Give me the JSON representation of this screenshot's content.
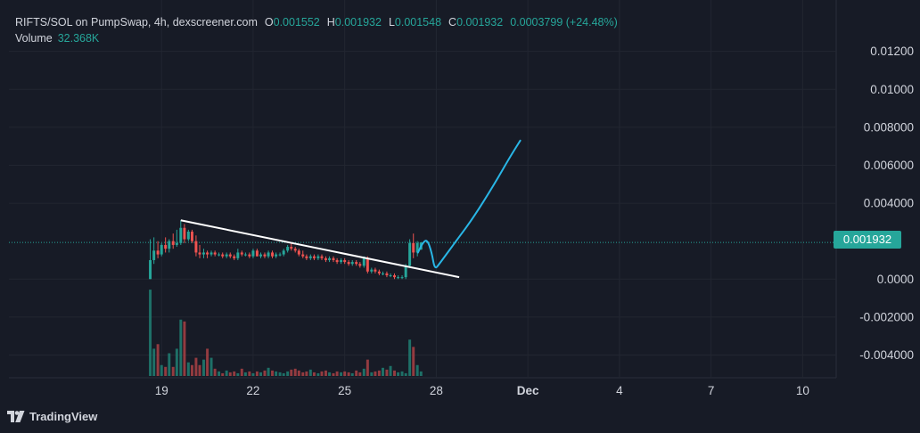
{
  "legend": {
    "symbol": "RIFTS/SOL on PumpSwap, 4h, dexscreener.com",
    "o_label": "O",
    "o": "0.001552",
    "h_label": "H",
    "h": "0.001932",
    "l_label": "L",
    "l": "0.001548",
    "c_label": "C",
    "c": "0.001932",
    "change": "0.0003799 (+24.48%)",
    "volume_label": "Volume",
    "volume": "32.368K"
  },
  "last_price": "0.001932",
  "brand": "TradingView",
  "colors": {
    "up": "#26a69a",
    "down": "#ef5350",
    "background": "#171b26",
    "grid": "#2a2e39",
    "trendline": "#ffffff",
    "projection": "#29b6e6"
  },
  "chart_data": {
    "type": "candlestick",
    "y_ticks": [
      "0.01200",
      "0.01000",
      "0.008000",
      "0.006000",
      "0.004000",
      "0.0000",
      "-0.002000",
      "-0.004000"
    ],
    "y_tick_values": [
      0.012,
      0.01,
      0.008,
      0.006,
      0.004,
      0.0,
      -0.002,
      -0.004
    ],
    "x_ticks": [
      "19",
      "22",
      "25",
      "28",
      "Dec",
      "4",
      "7",
      "10"
    ],
    "x_tick_days": [
      19,
      22,
      25,
      28,
      31,
      34,
      37,
      40
    ],
    "ylim": [
      -0.0052,
      0.0133
    ],
    "xlim": [
      14.0,
      41.1
    ],
    "grid": true,
    "candle_days": [
      18.63,
      18.75,
      18.88,
      19.0,
      19.13,
      19.25,
      19.38,
      19.5,
      19.63,
      19.75,
      19.88,
      20.0,
      20.13,
      20.25,
      20.38,
      20.5,
      20.63,
      20.75,
      20.88,
      21.0,
      21.13,
      21.25,
      21.38,
      21.5,
      21.63,
      21.75,
      21.88,
      22.0,
      22.13,
      22.25,
      22.38,
      22.5,
      22.63,
      22.75,
      22.88,
      23.0,
      23.13,
      23.25,
      23.38,
      23.5,
      23.63,
      23.75,
      23.88,
      24.0,
      24.13,
      24.25,
      24.38,
      24.5,
      24.63,
      24.75,
      24.88,
      25.0,
      25.13,
      25.25,
      25.38,
      25.5,
      25.63,
      25.75,
      25.88,
      26.0,
      26.13,
      26.25,
      26.38,
      26.5,
      26.63,
      26.75,
      26.88,
      27.0,
      27.13,
      27.25,
      27.38,
      27.5
    ],
    "ohlc": [
      [
        0.0,
        0.0021,
        0.0,
        0.001
      ],
      [
        0.001,
        0.0022,
        0.0008,
        0.0015
      ],
      [
        0.0015,
        0.002,
        0.0011,
        0.0013
      ],
      [
        0.0013,
        0.0019,
        0.0012,
        0.0018
      ],
      [
        0.0018,
        0.0022,
        0.0014,
        0.0016
      ],
      [
        0.0016,
        0.0021,
        0.0014,
        0.002
      ],
      [
        0.002,
        0.0024,
        0.0016,
        0.0018
      ],
      [
        0.0018,
        0.0026,
        0.0017,
        0.0019
      ],
      [
        0.0019,
        0.0031,
        0.0018,
        0.0027
      ],
      [
        0.0027,
        0.0029,
        0.0019,
        0.0021
      ],
      [
        0.0021,
        0.0026,
        0.002,
        0.0025
      ],
      [
        0.0025,
        0.0026,
        0.0019,
        0.002
      ],
      [
        0.002,
        0.0023,
        0.0012,
        0.0014
      ],
      [
        0.0014,
        0.0018,
        0.0011,
        0.0013
      ],
      [
        0.0013,
        0.0016,
        0.0011,
        0.0014
      ],
      [
        0.0014,
        0.0015,
        0.0011,
        0.0013
      ],
      [
        0.0013,
        0.0015,
        0.0012,
        0.0014
      ],
      [
        0.0014,
        0.0015,
        0.0012,
        0.0013
      ],
      [
        0.0013,
        0.0014,
        0.0012,
        0.0013
      ],
      [
        0.0013,
        0.0014,
        0.0011,
        0.0012
      ],
      [
        0.0012,
        0.0014,
        0.0011,
        0.0013
      ],
      [
        0.0013,
        0.0014,
        0.0011,
        0.0012
      ],
      [
        0.0012,
        0.0013,
        0.001,
        0.0011
      ],
      [
        0.0011,
        0.0016,
        0.001,
        0.0014
      ],
      [
        0.0014,
        0.0015,
        0.0012,
        0.0013
      ],
      [
        0.0013,
        0.0014,
        0.0012,
        0.0013
      ],
      [
        0.0013,
        0.0014,
        0.0011,
        0.0012
      ],
      [
        0.0012,
        0.0016,
        0.0011,
        0.0015
      ],
      [
        0.0015,
        0.0016,
        0.0012,
        0.0012
      ],
      [
        0.0012,
        0.0014,
        0.0011,
        0.0013
      ],
      [
        0.0013,
        0.0014,
        0.0011,
        0.0012
      ],
      [
        0.0012,
        0.0015,
        0.0011,
        0.0014
      ],
      [
        0.0014,
        0.0015,
        0.0011,
        0.0012
      ],
      [
        0.0012,
        0.0014,
        0.0011,
        0.0013
      ],
      [
        0.0013,
        0.0014,
        0.0012,
        0.0013
      ],
      [
        0.0013,
        0.0016,
        0.0012,
        0.0015
      ],
      [
        0.0015,
        0.0018,
        0.0014,
        0.0017
      ],
      [
        0.0017,
        0.0019,
        0.0015,
        0.0016
      ],
      [
        0.0016,
        0.0017,
        0.0014,
        0.0015
      ],
      [
        0.0015,
        0.0016,
        0.0012,
        0.0013
      ],
      [
        0.0013,
        0.0015,
        0.0011,
        0.0012
      ],
      [
        0.0012,
        0.0013,
        0.001,
        0.0011
      ],
      [
        0.0011,
        0.0013,
        0.001,
        0.0012
      ],
      [
        0.0012,
        0.0013,
        0.001,
        0.0011
      ],
      [
        0.0011,
        0.0013,
        0.001,
        0.0012
      ],
      [
        0.0012,
        0.0013,
        0.001,
        0.0011
      ],
      [
        0.0011,
        0.0012,
        0.0009,
        0.001
      ],
      [
        0.001,
        0.0012,
        0.0009,
        0.0011
      ],
      [
        0.0011,
        0.0012,
        0.0009,
        0.001
      ],
      [
        0.001,
        0.0011,
        0.0008,
        0.0009
      ],
      [
        0.0009,
        0.0011,
        0.0008,
        0.001
      ],
      [
        0.001,
        0.0011,
        0.0008,
        0.0009
      ],
      [
        0.0009,
        0.001,
        0.0007,
        0.0008
      ],
      [
        0.0008,
        0.001,
        0.0007,
        0.0009
      ],
      [
        0.0009,
        0.001,
        0.0007,
        0.0008
      ],
      [
        0.0008,
        0.0009,
        0.0006,
        0.0007
      ],
      [
        0.0007,
        0.0012,
        0.0006,
        0.0011
      ],
      [
        0.0011,
        0.0012,
        0.0003,
        0.0004
      ],
      [
        0.0004,
        0.0006,
        0.0003,
        0.0005
      ],
      [
        0.0005,
        0.0006,
        0.0003,
        0.0004
      ],
      [
        0.0004,
        0.0005,
        0.0002,
        0.0003
      ],
      [
        0.0003,
        0.0004,
        0.0002,
        0.0003
      ],
      [
        0.0003,
        0.0004,
        0.0001,
        0.0002
      ],
      [
        0.0002,
        0.0003,
        0.0001,
        0.0002
      ],
      [
        0.0002,
        0.0003,
        0.0,
        0.0001
      ],
      [
        0.0001,
        0.0002,
        0.0,
        0.0001
      ],
      [
        0.0001,
        0.0002,
        0.0,
        0.0001
      ],
      [
        0.0001,
        0.0008,
        0.0,
        0.0007
      ],
      [
        0.0007,
        0.0021,
        0.0006,
        0.0019
      ],
      [
        0.0019,
        0.0024,
        0.0011,
        0.0014
      ],
      [
        0.0014,
        0.002,
        0.0012,
        0.0019
      ],
      [
        0.001552,
        0.001932,
        0.001548,
        0.001932
      ]
    ],
    "volumes": [
      0.95,
      0.3,
      0.35,
      0.12,
      0.1,
      0.25,
      0.1,
      0.3,
      0.62,
      0.6,
      0.15,
      0.12,
      0.2,
      0.12,
      0.18,
      0.3,
      0.2,
      0.08,
      0.05,
      0.03,
      0.06,
      0.04,
      0.05,
      0.03,
      0.08,
      0.04,
      0.05,
      0.03,
      0.05,
      0.04,
      0.06,
      0.09,
      0.06,
      0.05,
      0.04,
      0.03,
      0.05,
      0.07,
      0.08,
      0.06,
      0.04,
      0.05,
      0.07,
      0.04,
      0.03,
      0.05,
      0.06,
      0.04,
      0.03,
      0.05,
      0.04,
      0.05,
      0.04,
      0.03,
      0.06,
      0.04,
      0.08,
      0.18,
      0.04,
      0.05,
      0.06,
      0.09,
      0.07,
      0.11,
      0.06,
      0.04,
      0.05,
      0.03,
      0.4,
      0.32,
      0.12,
      0.05
    ],
    "trendline": [
      [
        19.63,
        0.0031
      ],
      [
        28.75,
        0.0001
      ]
    ],
    "projection": [
      [
        27.4,
        0.0014
      ],
      [
        27.55,
        0.0019
      ],
      [
        27.7,
        0.0021
      ],
      [
        27.85,
        0.0014
      ],
      [
        27.95,
        0.0005
      ],
      [
        28.1,
        0.0008
      ],
      [
        28.6,
        0.0019
      ],
      [
        29.2,
        0.0032
      ],
      [
        29.9,
        0.005
      ],
      [
        30.4,
        0.0064
      ],
      [
        30.75,
        0.0073
      ]
    ],
    "last_price_value": 0.001932
  }
}
